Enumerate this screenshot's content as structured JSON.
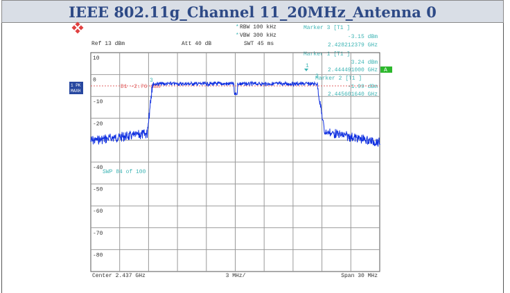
{
  "header": {
    "title": "IEEE 802.11g_Channel 11_20MHz_Antenna 0"
  },
  "analyzer": {
    "ref": "Ref  13 dBm",
    "att": "Att  40 dB",
    "rbw": "RBW 100 kHz",
    "vbw": "VBW 300 kHz",
    "swt": "SWT 45 ms",
    "markers": [
      {
        "title": "Marker 3 [T1 ]",
        "level": "-3.15 dBm",
        "freq": "2.428212379 GHz",
        "id": "3"
      },
      {
        "title": "Marker 1 [T1 ]",
        "level": "3.24 dBm",
        "freq": "2.444491000 GHz",
        "id": "1"
      },
      {
        "title": "Marker 2 [T1 ]",
        "level": "-1.99 dBm",
        "freq": "2.445601640 GHz",
        "id": "2"
      }
    ],
    "display_line": "D1 -2.76 dBm",
    "trace_mode": [
      "1 PK",
      "MAXH"
    ],
    "side_flag": "A",
    "sweep": "SWP    84 of    100",
    "y_labels": [
      "10",
      "0",
      "-10",
      "-20",
      "-40",
      "-50",
      "-60",
      "-70",
      "-80"
    ],
    "center": "Center  2.437 GHz",
    "div": "3 MHz/",
    "span": "Span  30 MHz"
  }
}
